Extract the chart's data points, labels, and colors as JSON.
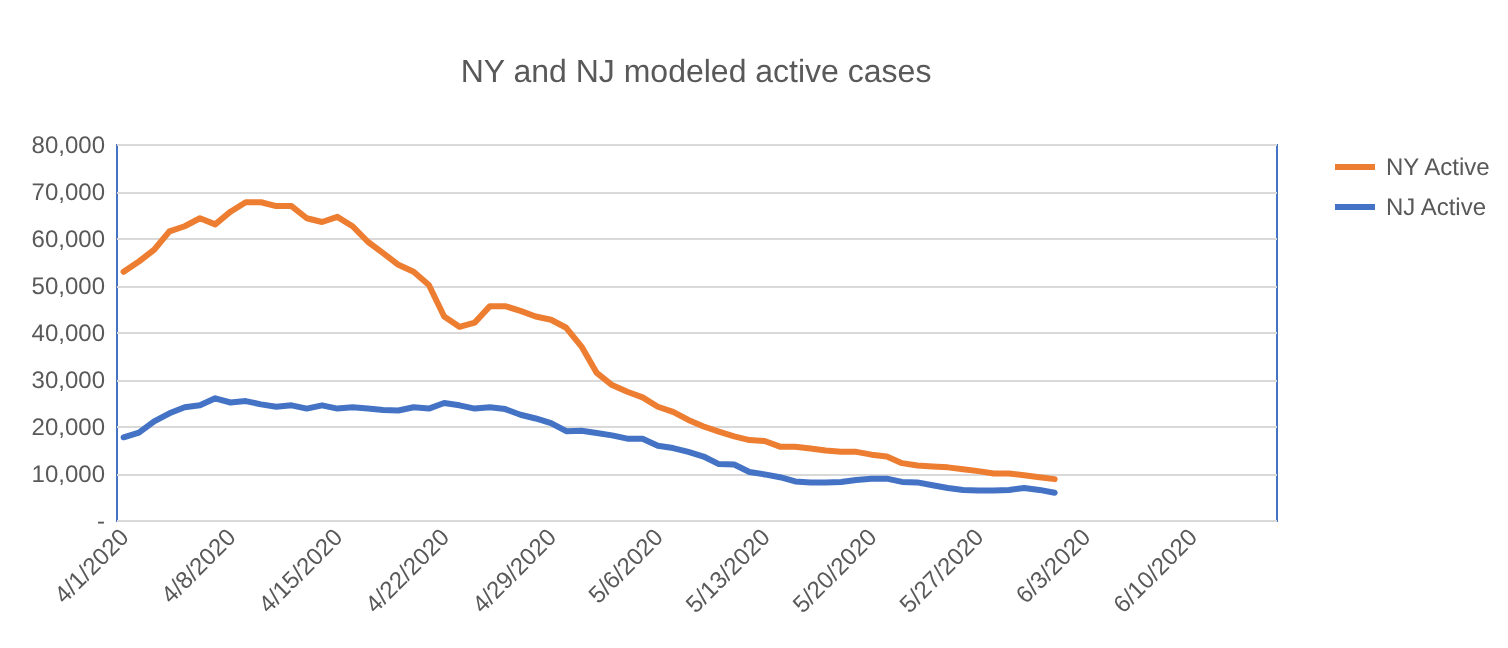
{
  "chart_data": {
    "type": "line",
    "title": "NY and NJ modeled active cases",
    "x": [
      "2020-04-01",
      "2020-04-02",
      "2020-04-03",
      "2020-04-04",
      "2020-04-05",
      "2020-04-06",
      "2020-04-07",
      "2020-04-08",
      "2020-04-09",
      "2020-04-10",
      "2020-04-11",
      "2020-04-12",
      "2020-04-13",
      "2020-04-14",
      "2020-04-15",
      "2020-04-16",
      "2020-04-17",
      "2020-04-18",
      "2020-04-19",
      "2020-04-20",
      "2020-04-21",
      "2020-04-22",
      "2020-04-23",
      "2020-04-24",
      "2020-04-25",
      "2020-04-26",
      "2020-04-27",
      "2020-04-28",
      "2020-04-29",
      "2020-04-30",
      "2020-05-01",
      "2020-05-02",
      "2020-05-03",
      "2020-05-04",
      "2020-05-05",
      "2020-05-06",
      "2020-05-07",
      "2020-05-08",
      "2020-05-09",
      "2020-05-10",
      "2020-05-11",
      "2020-05-12",
      "2020-05-13",
      "2020-05-14",
      "2020-05-15",
      "2020-05-16",
      "2020-05-17",
      "2020-05-18",
      "2020-05-19",
      "2020-05-20",
      "2020-05-21",
      "2020-05-22",
      "2020-05-23",
      "2020-05-24",
      "2020-05-25",
      "2020-05-26",
      "2020-05-27",
      "2020-05-28",
      "2020-05-29",
      "2020-05-30",
      "2020-05-31",
      "2020-06-01"
    ],
    "series": [
      {
        "name": "NY Active",
        "color": "#ed7d31",
        "values": [
          52800,
          55000,
          57500,
          61400,
          62500,
          64200,
          62900,
          65600,
          67600,
          67600,
          66800,
          66800,
          64200,
          63400,
          64500,
          62500,
          59200,
          56800,
          54300,
          52800,
          50000,
          43300,
          41100,
          42000,
          45500,
          45500,
          44500,
          43300,
          42600,
          40900,
          36900,
          31300,
          28700,
          27300,
          26100,
          24100,
          23000,
          21300,
          19900,
          18800,
          17800,
          17000,
          16800,
          15600,
          15600,
          15200,
          14800,
          14500,
          14500,
          13900,
          13500,
          12100,
          11600,
          11400,
          11200,
          10800,
          10400,
          9900,
          9900,
          9500,
          9100,
          8700
        ]
      },
      {
        "name": "NJ Active",
        "color": "#4472c4",
        "values": [
          17600,
          18600,
          21000,
          22700,
          24000,
          24400,
          25900,
          25000,
          25300,
          24600,
          24100,
          24400,
          23700,
          24400,
          23700,
          24000,
          23700,
          23400,
          23300,
          24000,
          23700,
          24900,
          24400,
          23700,
          24000,
          23600,
          22400,
          21600,
          20600,
          18900,
          19000,
          18500,
          18000,
          17300,
          17300,
          15800,
          15300,
          14500,
          13500,
          11900,
          11800,
          10200,
          9700,
          9100,
          8200,
          8000,
          8000,
          8100,
          8500,
          8800,
          8800,
          8100,
          8000,
          7400,
          6800,
          6400,
          6300,
          6300,
          6400,
          6800,
          6400,
          5800
        ]
      }
    ],
    "xlim": [
      "2020-03-31T12:00",
      "2020-06-15T12:00"
    ],
    "xticks": [
      {
        "value": "2020-04-01",
        "label": "4/1/2020"
      },
      {
        "value": "2020-04-08",
        "label": "4/8/2020"
      },
      {
        "value": "2020-04-15",
        "label": "4/15/2020"
      },
      {
        "value": "2020-04-22",
        "label": "4/22/2020"
      },
      {
        "value": "2020-04-29",
        "label": "4/29/2020"
      },
      {
        "value": "2020-05-06",
        "label": "5/6/2020"
      },
      {
        "value": "2020-05-13",
        "label": "5/13/2020"
      },
      {
        "value": "2020-05-20",
        "label": "5/20/2020"
      },
      {
        "value": "2020-05-27",
        "label": "5/27/2020"
      },
      {
        "value": "2020-06-03",
        "label": "6/3/2020"
      },
      {
        "value": "2020-06-10",
        "label": "6/10/2020"
      }
    ],
    "ylim": [
      0,
      80000
    ],
    "yticks": [
      {
        "value": 0,
        "label": "-"
      },
      {
        "value": 10000,
        "label": "10,000"
      },
      {
        "value": 20000,
        "label": "20,000"
      },
      {
        "value": 30000,
        "label": "30,000"
      },
      {
        "value": 40000,
        "label": "40,000"
      },
      {
        "value": 50000,
        "label": "50,000"
      },
      {
        "value": 60000,
        "label": "60,000"
      },
      {
        "value": 70000,
        "label": "70,000"
      },
      {
        "value": 80000,
        "label": "80,000"
      }
    ],
    "grid": "y",
    "legend": "right",
    "marker": "none",
    "line_style": "solid"
  }
}
